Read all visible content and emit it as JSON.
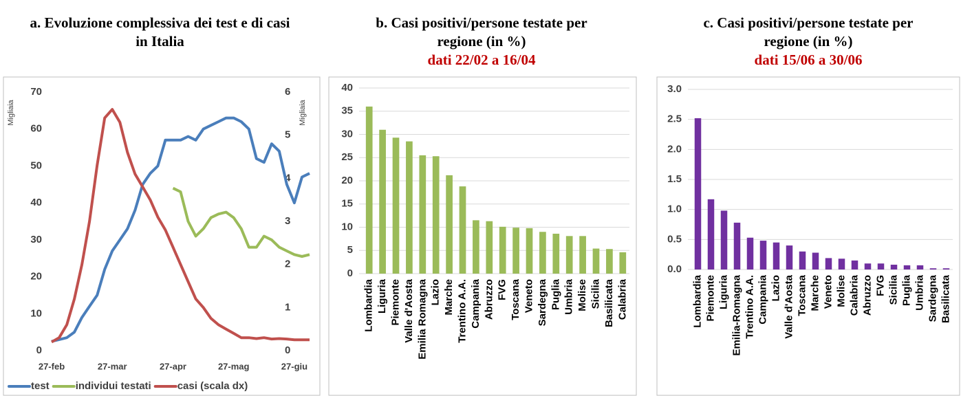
{
  "chart_data": [
    {
      "type": "line",
      "title": "a. Evoluzione complessiva dei test e di casi in Italia",
      "ylabel": "Migliaia",
      "y2label": "Migliaia",
      "categories": [
        "27-feb",
        null,
        null,
        null,
        null,
        null,
        null,
        null,
        "27-mar",
        null,
        null,
        null,
        null,
        null,
        null,
        null,
        "27-apr",
        null,
        null,
        null,
        null,
        null,
        null,
        null,
        "27-mag",
        null,
        null,
        null,
        null,
        null,
        null,
        null,
        "27-giu",
        null,
        null
      ],
      "series": [
        {
          "name": "test",
          "color": "#4a7ebb",
          "values": [
            2.5,
            3,
            3.5,
            5,
            9,
            12,
            15,
            22,
            27,
            30,
            33,
            38,
            45,
            48,
            50,
            57,
            57,
            57,
            58,
            57,
            60,
            61,
            62,
            63,
            63,
            62,
            60,
            52,
            51,
            56,
            54,
            45,
            40,
            47,
            48
          ]
        },
        {
          "name": "individui testati",
          "color": "#9bbb59",
          "values": [
            null,
            null,
            null,
            null,
            null,
            null,
            null,
            null,
            null,
            null,
            null,
            null,
            null,
            null,
            null,
            null,
            44,
            43,
            35,
            31,
            33,
            36,
            37,
            37.5,
            36,
            33,
            28,
            28,
            31,
            30,
            28,
            27,
            26,
            25.5,
            26
          ]
        },
        {
          "name": "casi (scala dx)",
          "color": "#c0504d",
          "axis": "y2",
          "values": [
            0.2,
            0.3,
            0.6,
            1.2,
            2.0,
            3.0,
            4.3,
            5.4,
            5.6,
            5.3,
            4.6,
            4.1,
            3.8,
            3.5,
            3.1,
            2.8,
            2.4,
            2.0,
            1.6,
            1.2,
            1.0,
            0.75,
            0.6,
            0.5,
            0.4,
            0.3,
            0.3,
            0.28,
            0.3,
            0.27,
            0.28,
            0.27,
            0.25,
            0.25,
            0.25
          ]
        }
      ],
      "ylim": [
        0,
        70
      ],
      "yticks": [
        0,
        10,
        20,
        30,
        40,
        50,
        60,
        70
      ],
      "y2lim": [
        0,
        6
      ],
      "y2ticks": [
        0,
        1,
        2,
        3,
        4,
        5,
        6
      ],
      "grid": false,
      "legend": "bottom"
    },
    {
      "type": "bar",
      "title": "b. Casi positivi/persone testate per regione (in %)",
      "subtitle": "dati 22/02 a 16/04",
      "categories": [
        "Lombardia",
        "Liguria",
        "Piemonte",
        "Valle d'Aosta",
        "Emilia Romagna",
        "Lazio",
        "Marche",
        "Trentino A.A.",
        "Campania",
        "Abruzzo",
        "FVG",
        "Toscana",
        "Veneto",
        "Sardegna",
        "Puglia",
        "Umbria",
        "Molise",
        "Sicilia",
        "Basilicata",
        "Calabria"
      ],
      "values": [
        36,
        31,
        29.3,
        28.5,
        25.5,
        25.3,
        21.2,
        18.8,
        11.5,
        11.3,
        10.1,
        9.9,
        9.8,
        9,
        8.6,
        8.1,
        8.1,
        5.4,
        5.3,
        4.6
      ],
      "color": "#9bbb59",
      "ylim": [
        0,
        40
      ],
      "yticks": [
        0,
        5,
        10,
        15,
        20,
        25,
        30,
        35,
        40
      ],
      "grid": true
    },
    {
      "type": "bar",
      "title": "c. Casi positivi/persone testate per regione (in %)",
      "subtitle": "dati 15/06 a 30/06",
      "categories": [
        "Lombardia",
        "Piemonte",
        "Liguria",
        "Emilia-Romagna",
        "Trentino A.A.",
        "Campania",
        "Lazio",
        "Valle d'Aosta",
        "Toscana",
        "Marche",
        "Veneto",
        "Molise",
        "Calabria",
        "Abruzzo",
        "FVG",
        "Sicilia",
        "Puglia",
        "Umbria",
        "Sardegna",
        "Basilicata"
      ],
      "values": [
        2.52,
        1.17,
        0.98,
        0.78,
        0.53,
        0.48,
        0.45,
        0.4,
        0.3,
        0.28,
        0.19,
        0.18,
        0.15,
        0.1,
        0.1,
        0.08,
        0.07,
        0.07,
        0.02,
        0.02
      ],
      "color": "#7030a0",
      "ylim": [
        0,
        3
      ],
      "yticks": [
        {
          "value": 0,
          "label": "0.0"
        },
        0.5,
        {
          "value": 1,
          "label": "1.0"
        },
        1.5,
        {
          "value": 2,
          "label": "2.0"
        },
        2.5,
        {
          "value": 3,
          "label": "3.0"
        }
      ],
      "grid": true
    }
  ]
}
